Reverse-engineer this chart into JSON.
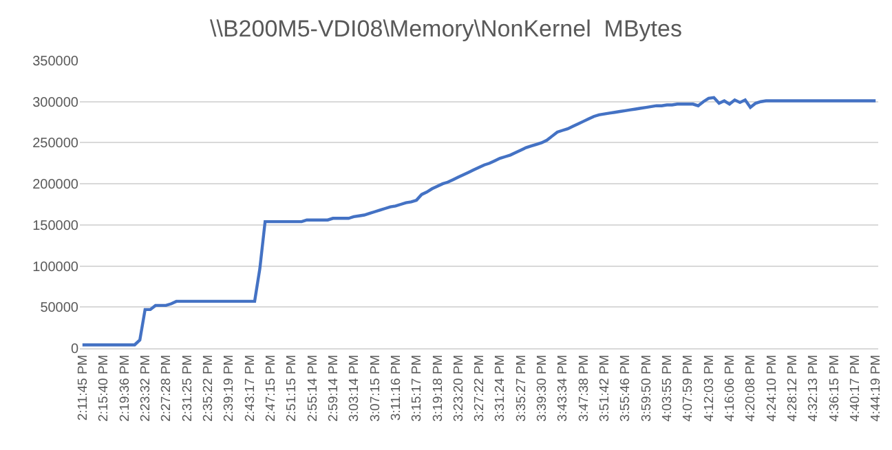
{
  "chart_data": {
    "type": "line",
    "title": "\\\\B200M5-VDI08\\Memory\\NonKernel  MBytes",
    "categories": [
      "2:11:45 PM",
      null,
      null,
      null,
      "2:15:40 PM",
      null,
      null,
      null,
      "2:19:36 PM",
      null,
      null,
      null,
      "2:23:32 PM",
      null,
      null,
      null,
      "2:27:28 PM",
      null,
      null,
      null,
      "2:31:25 PM",
      null,
      null,
      null,
      "2:35:22 PM",
      null,
      null,
      null,
      "2:39:19 PM",
      null,
      null,
      null,
      "2:43:17 PM",
      null,
      null,
      null,
      "2:47:15 PM",
      null,
      null,
      null,
      "2:51:15 PM",
      null,
      null,
      null,
      "2:55:14 PM",
      null,
      null,
      null,
      "2:59:14 PM",
      null,
      null,
      null,
      "3:03:14 PM",
      null,
      null,
      null,
      "3:07:15 PM",
      null,
      null,
      null,
      "3:11:16 PM",
      null,
      null,
      null,
      "3:15:17 PM",
      null,
      null,
      null,
      "3:19:18 PM",
      null,
      null,
      null,
      "3:23:20 PM",
      null,
      null,
      null,
      "3:27:22 PM",
      null,
      null,
      null,
      "3:31:24 PM",
      null,
      null,
      null,
      "3:35:27 PM",
      null,
      null,
      null,
      "3:39:30 PM",
      null,
      null,
      null,
      "3:43:34 PM",
      null,
      null,
      null,
      "3:47:38 PM",
      null,
      null,
      null,
      "3:51:42 PM",
      null,
      null,
      null,
      "3:55:46 PM",
      null,
      null,
      null,
      "3:59:50 PM",
      null,
      null,
      null,
      "4:03:55 PM",
      null,
      null,
      null,
      "4:07:59 PM",
      null,
      null,
      null,
      "4:12:03 PM",
      null,
      null,
      null,
      "4:16:06 PM",
      null,
      null,
      null,
      "4:20:08 PM",
      null,
      null,
      null,
      "4:24:10 PM",
      null,
      null,
      null,
      "4:28:12 PM",
      null,
      null,
      null,
      "4:32:13 PM",
      null,
      null,
      null,
      "4:36:15 PM",
      null,
      null,
      null,
      "4:40:17 PM",
      null,
      null,
      null,
      "4:44:19 PM"
    ],
    "values": [
      4000,
      4000,
      4000,
      4000,
      4000,
      4000,
      4000,
      4000,
      4000,
      4000,
      4000,
      10000,
      47000,
      47000,
      52000,
      52000,
      52000,
      54000,
      57000,
      57000,
      57000,
      57000,
      57000,
      57000,
      57000,
      57000,
      57000,
      57000,
      57000,
      57000,
      57000,
      57000,
      57000,
      57000,
      97000,
      154000,
      154000,
      154000,
      154000,
      154000,
      154000,
      154000,
      154000,
      156000,
      156000,
      156000,
      156000,
      156000,
      158000,
      158000,
      158000,
      158000,
      160000,
      161000,
      162000,
      164000,
      166000,
      168000,
      170000,
      172000,
      173000,
      175000,
      177000,
      178000,
      180000,
      187000,
      190000,
      194000,
      197000,
      200000,
      202000,
      205000,
      208000,
      211000,
      214000,
      217000,
      220000,
      223000,
      225000,
      228000,
      231000,
      233000,
      235000,
      238000,
      241000,
      244000,
      246000,
      248000,
      250000,
      253000,
      258000,
      263000,
      265000,
      267000,
      270000,
      273000,
      276000,
      279000,
      282000,
      284000,
      285000,
      286000,
      287000,
      288000,
      289000,
      290000,
      291000,
      292000,
      293000,
      294000,
      295000,
      295000,
      296000,
      296000,
      297000,
      297000,
      297000,
      297000,
      295000,
      300000,
      304000,
      305000,
      298000,
      301000,
      297000,
      302000,
      299000,
      302000,
      293000,
      298000,
      300000,
      301000,
      301000,
      301000,
      301000,
      301000,
      301000,
      301000,
      301000,
      301000,
      301000,
      301000,
      301000,
      301000,
      301000,
      301000,
      301000,
      301000,
      301000,
      301000,
      301000,
      301000,
      301000
    ],
    "color": "#4472c4",
    "ylim": [
      0,
      350000
    ],
    "yticks": [
      0,
      50000,
      100000,
      150000,
      200000,
      250000,
      300000,
      350000
    ],
    "grid": "y",
    "legend": false,
    "marker": "none",
    "line_style": "solid"
  }
}
